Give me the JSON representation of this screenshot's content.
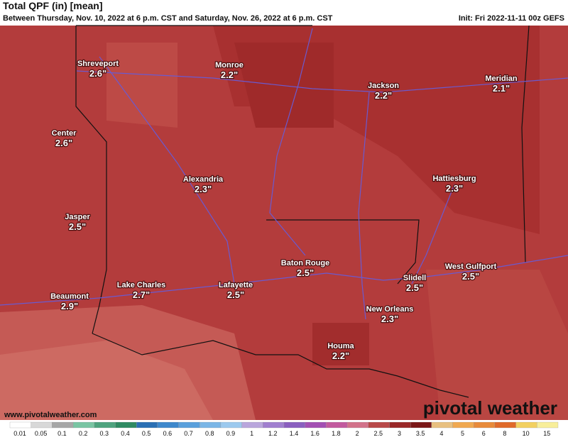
{
  "header": {
    "title": "Total QPF (in) [mean]",
    "subtitle": "Between Thursday, Nov. 10, 2022 at 6 p.m. CST and Saturday, Nov. 26, 2022 at 6 p.m. CST",
    "init": "Init: Fri 2022-11-11 00z GEFS"
  },
  "cities": [
    {
      "name": "Shreveport",
      "value": "2.6\""
    },
    {
      "name": "Monroe",
      "value": "2.2\""
    },
    {
      "name": "Jackson",
      "value": "2.2\""
    },
    {
      "name": "Meridian",
      "value": "2.1\""
    },
    {
      "name": "Center",
      "value": "2.6\""
    },
    {
      "name": "Alexandria",
      "value": "2.3\""
    },
    {
      "name": "Hattiesburg",
      "value": "2.3\""
    },
    {
      "name": "Jasper",
      "value": "2.5\""
    },
    {
      "name": "Baton Rouge",
      "value": "2.5\""
    },
    {
      "name": "West Gulfport",
      "value": "2.5\""
    },
    {
      "name": "Slidell",
      "value": "2.5\""
    },
    {
      "name": "Beaumont",
      "value": "2.9\""
    },
    {
      "name": "Lake Charles",
      "value": "2.7\""
    },
    {
      "name": "Lafayette",
      "value": "2.5\""
    },
    {
      "name": "New Orleans",
      "value": "2.3\""
    },
    {
      "name": "Houma",
      "value": "2.2\""
    }
  ],
  "footer": {
    "website": "www.pivotalweather.com",
    "logo": "pivotal weather"
  },
  "colorbar": [
    {
      "label": "0.01",
      "color": "#ffffff"
    },
    {
      "label": "0.05",
      "color": "#d8d8d8"
    },
    {
      "label": "0.1",
      "color": "#a6a6a6"
    },
    {
      "label": "0.2",
      "color": "#79c5a3"
    },
    {
      "label": "0.3",
      "color": "#4ea37e"
    },
    {
      "label": "0.4",
      "color": "#2f8a62"
    },
    {
      "label": "0.5",
      "color": "#2a6fb4"
    },
    {
      "label": "0.6",
      "color": "#3e88cc"
    },
    {
      "label": "0.7",
      "color": "#5aa0dc"
    },
    {
      "label": "0.8",
      "color": "#7bb6e6"
    },
    {
      "label": "0.9",
      "color": "#9cc9ee"
    },
    {
      "label": "1",
      "color": "#b9a6dc"
    },
    {
      "label": "1.2",
      "color": "#a07fcf"
    },
    {
      "label": "1.4",
      "color": "#8a5fbf"
    },
    {
      "label": "1.6",
      "color": "#a34fb3"
    },
    {
      "label": "1.8",
      "color": "#c25a9e"
    },
    {
      "label": "2",
      "color": "#d2728a"
    },
    {
      "label": "2.5",
      "color": "#b84848"
    },
    {
      "label": "3",
      "color": "#9a2828"
    },
    {
      "label": "3.5",
      "color": "#7b1818"
    },
    {
      "label": "4",
      "color": "#e8c080"
    },
    {
      "label": "5",
      "color": "#f0a850"
    },
    {
      "label": "6",
      "color": "#e88a3a"
    },
    {
      "label": "8",
      "color": "#e06a2a"
    },
    {
      "label": "10",
      "color": "#f2d060"
    },
    {
      "label": "15",
      "color": "#f8ee9a"
    }
  ]
}
